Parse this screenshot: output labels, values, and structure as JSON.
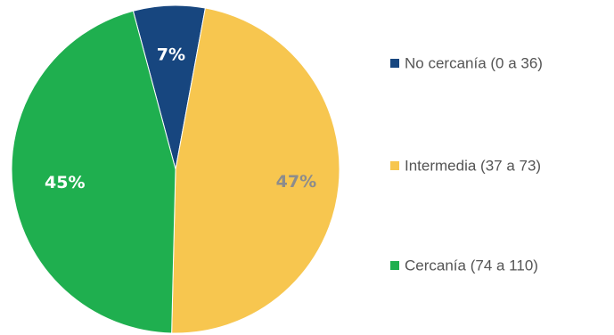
{
  "chart_data": {
    "type": "pie",
    "title": "",
    "legend_position": "right",
    "slices": [
      {
        "label": "No cercanía (0 a 36)",
        "value": 7,
        "value_label": "7%",
        "color": "#17467F",
        "label_color": "#ffffff"
      },
      {
        "label": "Intermedia (37 a 73)",
        "value": 47,
        "value_label": "47%",
        "color": "#F7C64F",
        "label_color": "#8C8C8C"
      },
      {
        "label": "Cercanía (74 a 110)",
        "value": 45,
        "value_label": "45%",
        "color": "#1FAF4F",
        "label_color": "#ffffff"
      }
    ]
  }
}
